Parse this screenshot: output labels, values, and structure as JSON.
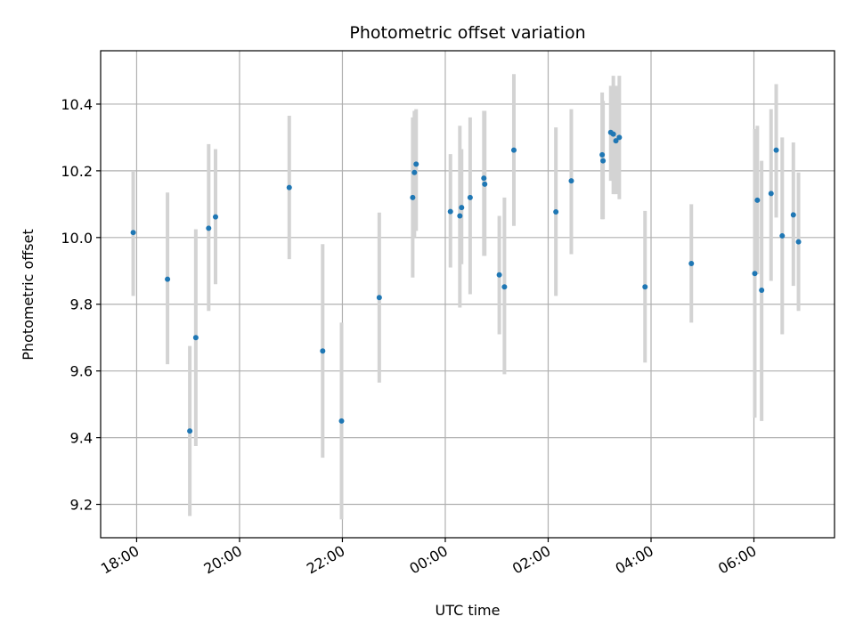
{
  "chart_data": {
    "type": "scatter",
    "title": "Photometric offset variation",
    "xlabel": "UTC time",
    "ylabel": "Photometric offset",
    "grid": true,
    "x_unit": "UTC hh:mm (dates not shown)",
    "xlim": [
      "17:18",
      "07:34"
    ],
    "ylim": [
      9.1,
      10.56
    ],
    "x_ticks": [
      "18:00",
      "20:00",
      "22:00",
      "00:00",
      "02:00",
      "04:00",
      "06:00"
    ],
    "y_ticks": [
      "9.2",
      "9.4",
      "9.6",
      "9.8",
      "10.0",
      "10.2",
      "10.4"
    ],
    "marker_color": "#1f77b4",
    "errorbar_color": "#d3d3d3",
    "points": [
      {
        "x": "17:56",
        "y": 10.015,
        "ylow": 9.825,
        "yhigh": 10.2
      },
      {
        "x": "18:36",
        "y": 9.875,
        "ylow": 9.62,
        "yhigh": 10.135
      },
      {
        "x": "19:02",
        "y": 9.42,
        "ylow": 9.165,
        "yhigh": 9.675
      },
      {
        "x": "19:09",
        "y": 9.7,
        "ylow": 9.375,
        "yhigh": 10.025
      },
      {
        "x": "19:24",
        "y": 10.028,
        "ylow": 9.78,
        "yhigh": 10.28
      },
      {
        "x": "19:32",
        "y": 10.062,
        "ylow": 9.86,
        "yhigh": 10.265
      },
      {
        "x": "20:58",
        "y": 10.15,
        "ylow": 9.935,
        "yhigh": 10.365
      },
      {
        "x": "21:37",
        "y": 9.66,
        "ylow": 9.34,
        "yhigh": 9.98
      },
      {
        "x": "21:59",
        "y": 9.45,
        "ylow": 9.155,
        "yhigh": 9.745
      },
      {
        "x": "22:43",
        "y": 9.82,
        "ylow": 9.565,
        "yhigh": 10.075
      },
      {
        "x": "23:22",
        "y": 10.12,
        "ylow": 9.88,
        "yhigh": 10.36
      },
      {
        "x": "23:24",
        "y": 10.195,
        "ylow": 10.0,
        "yhigh": 10.38
      },
      {
        "x": "23:26",
        "y": 10.22,
        "ylow": 10.02,
        "yhigh": 10.385
      },
      {
        "x": "00:06",
        "y": 10.078,
        "ylow": 9.91,
        "yhigh": 10.25
      },
      {
        "x": "00:17",
        "y": 10.065,
        "ylow": 9.79,
        "yhigh": 10.335
      },
      {
        "x": "00:19",
        "y": 10.09,
        "ylow": 9.92,
        "yhigh": 10.265
      },
      {
        "x": "00:29",
        "y": 10.12,
        "ylow": 9.83,
        "yhigh": 10.36
      },
      {
        "x": "00:45",
        "y": 10.178,
        "ylow": 9.945,
        "yhigh": 10.38
      },
      {
        "x": "00:46",
        "y": 10.16,
        "ylow": 9.945,
        "yhigh": 10.38
      },
      {
        "x": "01:03",
        "y": 9.888,
        "ylow": 9.71,
        "yhigh": 10.065
      },
      {
        "x": "01:09",
        "y": 9.852,
        "ylow": 9.59,
        "yhigh": 10.12
      },
      {
        "x": "01:20",
        "y": 10.262,
        "ylow": 10.035,
        "yhigh": 10.49
      },
      {
        "x": "02:09",
        "y": 10.077,
        "ylow": 9.825,
        "yhigh": 10.33
      },
      {
        "x": "02:27",
        "y": 10.17,
        "ylow": 9.95,
        "yhigh": 10.385
      },
      {
        "x": "03:03",
        "y": 10.248,
        "ylow": 10.055,
        "yhigh": 10.435
      },
      {
        "x": "03:04",
        "y": 10.23,
        "ylow": 10.055,
        "yhigh": 10.41
      },
      {
        "x": "03:13",
        "y": 10.315,
        "ylow": 10.17,
        "yhigh": 10.455
      },
      {
        "x": "03:16",
        "y": 10.31,
        "ylow": 10.13,
        "yhigh": 10.485
      },
      {
        "x": "03:19",
        "y": 10.29,
        "ylow": 10.13,
        "yhigh": 10.455
      },
      {
        "x": "03:23",
        "y": 10.3,
        "ylow": 10.115,
        "yhigh": 10.485
      },
      {
        "x": "03:53",
        "y": 9.852,
        "ylow": 9.625,
        "yhigh": 10.08
      },
      {
        "x": "04:47",
        "y": 9.922,
        "ylow": 9.745,
        "yhigh": 10.1
      },
      {
        "x": "06:01",
        "y": 9.892,
        "ylow": 9.46,
        "yhigh": 10.325
      },
      {
        "x": "06:04",
        "y": 10.112,
        "ylow": 9.89,
        "yhigh": 10.335
      },
      {
        "x": "06:09",
        "y": 9.842,
        "ylow": 9.45,
        "yhigh": 10.23
      },
      {
        "x": "06:20",
        "y": 10.132,
        "ylow": 9.87,
        "yhigh": 10.385
      },
      {
        "x": "06:26",
        "y": 10.262,
        "ylow": 10.06,
        "yhigh": 10.46
      },
      {
        "x": "06:33",
        "y": 10.005,
        "ylow": 9.71,
        "yhigh": 10.3
      },
      {
        "x": "06:46",
        "y": 10.068,
        "ylow": 9.855,
        "yhigh": 10.285
      },
      {
        "x": "06:52",
        "y": 9.987,
        "ylow": 9.78,
        "yhigh": 10.195
      }
    ]
  }
}
